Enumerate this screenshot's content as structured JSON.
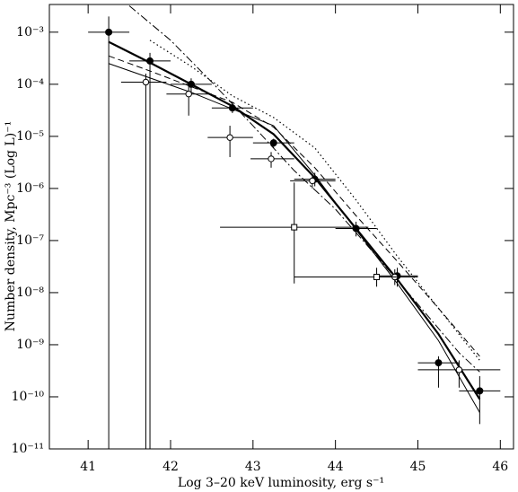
{
  "chart_data": {
    "type": "line",
    "xlabel": "Log 3–20 keV luminosity, erg s⁻¹",
    "ylabel": "Number density, Mpc⁻³ (Log L)⁻¹",
    "xlim": [
      40.53,
      46.16
    ],
    "ylim": [
      1e-11,
      0.0034
    ],
    "ylog": true,
    "xticks": [
      41,
      42,
      43,
      44,
      45,
      46
    ],
    "yticks": [
      {
        "value": 1e-11,
        "label": "10⁻¹¹"
      },
      {
        "value": 1e-10,
        "label": "10⁻¹⁰"
      },
      {
        "value": 1e-09,
        "label": "10⁻⁹"
      },
      {
        "value": 1e-08,
        "label": "10⁻⁸"
      },
      {
        "value": 1e-07,
        "label": "10⁻⁷"
      },
      {
        "value": 1e-06,
        "label": "10⁻⁶"
      },
      {
        "value": 1e-05,
        "label": "10⁻⁵"
      },
      {
        "value": 0.0001,
        "label": "10⁻⁴"
      },
      {
        "value": 0.001,
        "label": "10⁻³"
      }
    ],
    "series": [
      {
        "color": "#000000",
        "style": "thick",
        "x": [
          41.25,
          41.75,
          42.25,
          42.75,
          43.25,
          43.75,
          44.25,
          44.75,
          45.25,
          45.75
        ],
        "values": [
          0.00065,
          0.00026,
          0.0001,
          3.8e-05,
          1.1e-05,
          1.6e-06,
          1.7e-07,
          1.8e-08,
          1.6e-09,
          9e-11
        ]
      },
      {
        "color": "#000000",
        "style": "thin",
        "x": [
          41.25,
          42.25,
          43.25,
          43.75,
          44.25,
          44.75,
          45.25,
          45.75
        ],
        "values": [
          0.00025,
          7e-05,
          1.6e-05,
          1.8e-06,
          1.6e-07,
          1.5e-08,
          1.2e-09,
          5e-11
        ]
      },
      {
        "color": "#000000",
        "style": "dotted",
        "x": [
          41.75,
          42.25,
          42.75,
          43.25,
          43.75,
          44.25,
          44.75,
          45.25,
          45.75
        ],
        "values": [
          0.0007,
          0.00022,
          6e-05,
          2.3e-05,
          6e-06,
          6e-07,
          5e-08,
          5e-09,
          5e-10
        ]
      },
      {
        "color": "#000000",
        "style": "dashed",
        "x": [
          41.25,
          41.75,
          42.25,
          42.75,
          43.25,
          43.75,
          44.25,
          44.75,
          45.25,
          45.75
        ],
        "values": [
          0.00035,
          0.00018,
          9e-05,
          4.5e-05,
          1.5e-05,
          2.5e-06,
          3e-07,
          4e-08,
          5e-09,
          6e-10
        ]
      },
      {
        "color": "#000000",
        "style": "dashdot",
        "x": [
          41.5,
          42.0,
          42.5,
          43.0,
          43.5,
          44.0,
          44.5,
          45.0,
          45.5,
          45.75
        ],
        "values": [
          0.0032,
          0.0007,
          0.00011,
          1.6e-05,
          2.2e-06,
          4e-07,
          5e-08,
          6e-09,
          7e-10,
          3e-10
        ]
      },
      {
        "color": "#000000",
        "marker": "filled-circle",
        "x": [
          41.25,
          41.75,
          42.25,
          42.75,
          43.25,
          43.75,
          44.25,
          44.75,
          45.25,
          45.75
        ],
        "values": [
          0.001,
          0.00028,
          0.0001,
          3.5e-05,
          7.5e-06,
          1.5e-06,
          1.7e-07,
          2.1e-08,
          4.5e-10,
          1.3e-10
        ],
        "ylow": [
          1e-11,
          1e-11,
          7e-05,
          2.8e-05,
          6e-06,
          1.1e-06,
          1.2e-07,
          1.3e-08,
          1.5e-10,
          3e-11
        ],
        "yhigh": [
          0.002,
          0.0004,
          0.00013,
          4.5e-05,
          9e-06,
          2e-06,
          2.3e-07,
          3e-08,
          6e-10,
          2.5e-10
        ],
        "xlow": [
          41.0,
          41.5,
          42.0,
          42.5,
          43.0,
          43.5,
          44.0,
          44.5,
          45.0,
          45.5
        ],
        "xhigh": [
          41.5,
          42.0,
          42.5,
          43.0,
          43.5,
          44.0,
          44.5,
          45.0,
          45.5,
          46.0
        ]
      },
      {
        "color": "#000000",
        "marker": "open-circle",
        "x": [
          41.7,
          42.22,
          42.72,
          43.22,
          43.72,
          44.72,
          45.5
        ],
        "values": [
          0.00011,
          6.5e-05,
          9.5e-06,
          3.7e-06,
          1.4e-06,
          2e-08,
          3.3e-10
        ],
        "ylow": [
          1e-11,
          2.5e-05,
          4e-06,
          2.5e-06,
          1e-06,
          1.4e-08,
          1.5e-10
        ],
        "yhigh": [
          0.00016,
          0.0001,
          1.6e-05,
          5e-06,
          1.8e-06,
          2.8e-08,
          5e-10
        ],
        "xlow": [
          41.4,
          41.95,
          42.45,
          42.97,
          43.45,
          44.45,
          45.0
        ],
        "xhigh": [
          41.95,
          42.5,
          43.0,
          43.5,
          44.0,
          45.0,
          46.0
        ]
      },
      {
        "color": "#000000",
        "marker": "open-square",
        "x": [
          43.5,
          44.5
        ],
        "values": [
          1.8e-07,
          2e-08
        ],
        "ylow": [
          1.5e-08,
          1.3e-08
        ],
        "yhigh": [
          1.3e-06,
          3e-08
        ],
        "xlow": [
          42.6,
          43.5
        ],
        "xhigh": [
          44.4,
          45.0
        ]
      }
    ]
  }
}
